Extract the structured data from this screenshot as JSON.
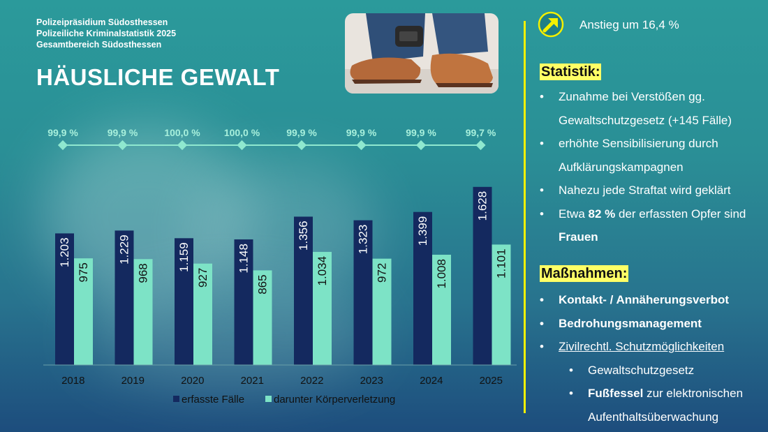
{
  "header": {
    "line1": "Polizeipräsidium Südosthessen",
    "line2": "Polizeiliche Kriminalstatistik 2025",
    "line3": "Gesamtbereich Südosthessen",
    "title": "HÄUSLICHE GEWALT"
  },
  "trend": {
    "icon": "arrow-up-right-icon",
    "text": "Anstieg um 16,4 %"
  },
  "statistik": {
    "title": "Statistik",
    "colon": ":",
    "items": [
      {
        "line1": "Zunahme bei Verstößen gg.",
        "line2": "Gewaltschutzgesetz (+145 Fälle)"
      },
      {
        "line1": "erhöhte Sensibilisierung durch",
        "line2": "Aufklärungskampagnen"
      },
      {
        "line1": "Nahezu jede Straftat wird geklärt"
      },
      {
        "pre": "Etwa ",
        "bold": "82 %",
        "post": " der erfassten Opfer sind",
        "line2_bold": "Frauen"
      }
    ]
  },
  "massnahmen": {
    "title": "Maßnahmen",
    "colon": ":",
    "items": [
      {
        "text": "Kontakt- / Annäherungsverbot"
      },
      {
        "text": "Bedrohungsmanagement"
      },
      {
        "text": "Zivilrechtl. Schutzmöglichkeiten"
      }
    ],
    "sub_items": [
      {
        "text": "Gewaltschutzgesetz"
      },
      {
        "bold": "Fußfessel",
        "rest": " zur elektronischen",
        "line2": "Aufenthaltsüberwachung"
      }
    ]
  },
  "chart_data": {
    "type": "bar",
    "categories": [
      "2018",
      "2019",
      "2020",
      "2021",
      "2022",
      "2023",
      "2024",
      "2025"
    ],
    "series": [
      {
        "name": "erfasste Fälle",
        "color": "#14295f",
        "values": [
          1203,
          1229,
          1159,
          1148,
          1356,
          1323,
          1399,
          1628
        ],
        "labels": [
          "1.203",
          "1.229",
          "1.159",
          "1.148",
          "1.356",
          "1.323",
          "1.399",
          "1.628"
        ]
      },
      {
        "name": "darunter Körperverletzung",
        "color": "#7de3c6",
        "values": [
          975,
          968,
          927,
          865,
          1034,
          972,
          1008,
          1101
        ],
        "labels": [
          "975",
          "968",
          "927",
          "865",
          "1.034",
          "972",
          "1.008",
          "1.101"
        ]
      }
    ],
    "line": {
      "color": "#8fe8cf",
      "values": [
        99.9,
        99.9,
        100.0,
        100.0,
        99.9,
        99.9,
        99.9,
        99.7
      ],
      "labels": [
        "99,9 %",
        "99,9 %",
        "100,0 %",
        "100,0 %",
        "99,9 %",
        "99,9 %",
        "99,9 %",
        "99,7 %"
      ]
    },
    "ylim": [
      0,
      1850
    ],
    "legend_position": "bottom"
  }
}
